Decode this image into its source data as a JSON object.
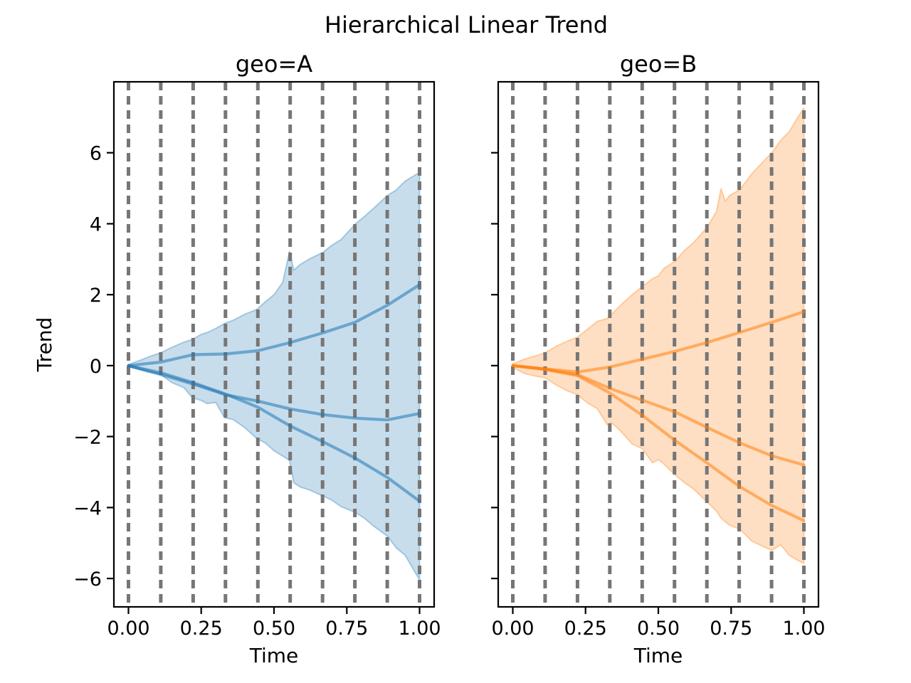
{
  "suptitle": "Hierarchical Linear Trend",
  "colors": {
    "blue": "#1f77b4",
    "orange": "#ff7f0e",
    "grid": "#767676",
    "spine": "#000000"
  },
  "chart_data": [
    {
      "type": "area",
      "title": "geo=A",
      "xlabel": "Time",
      "ylabel": "Trend",
      "color": "#1f77b4",
      "xlim": [
        -0.05,
        1.05
      ],
      "ylim": [
        -6.8,
        8.0
      ],
      "grid": "vertical-dashed-changepoints",
      "xticks": [
        0.0,
        0.25,
        0.5,
        0.75,
        1.0
      ],
      "xtick_labels": [
        "0.00",
        "0.25",
        "0.50",
        "0.75",
        "1.00"
      ],
      "yticks": [
        -6,
        -4,
        -2,
        0,
        2,
        4,
        6
      ],
      "ytick_labels": [
        "−6",
        "−4",
        "−2",
        "0",
        "2",
        "4",
        "6"
      ],
      "show_ytick_labels": true,
      "changepoints": [
        0,
        0.1111,
        0.2222,
        0.3333,
        0.4444,
        0.5556,
        0.6667,
        0.7778,
        0.8889,
        1.0
      ],
      "series": [
        {
          "name": "posterior-mean-line-1",
          "x": [
            0,
            0.1111,
            0.2222,
            0.3333,
            0.4444,
            0.5556,
            0.6667,
            0.7778,
            0.8889,
            1.0
          ],
          "y": [
            0,
            0.1,
            0.31,
            0.33,
            0.42,
            0.65,
            0.92,
            1.22,
            1.7,
            2.28
          ]
        },
        {
          "name": "posterior-mean-line-2",
          "x": [
            0,
            0.1111,
            0.2222,
            0.3333,
            0.4444,
            0.5556,
            0.6667,
            0.7778,
            0.8889,
            1.0
          ],
          "y": [
            0,
            -0.25,
            -0.52,
            -0.82,
            -1.0,
            -1.22,
            -1.38,
            -1.48,
            -1.53,
            -1.35
          ]
        },
        {
          "name": "posterior-mean-line-3",
          "x": [
            0,
            0.1111,
            0.2222,
            0.3333,
            0.4444,
            0.5556,
            0.6667,
            0.7778,
            0.8889,
            1.0
          ],
          "y": [
            0,
            -0.2,
            -0.48,
            -0.8,
            -1.17,
            -1.7,
            -2.14,
            -2.6,
            -3.15,
            -3.82
          ]
        }
      ],
      "band": {
        "x": [
          0.0,
          0.04,
          0.08,
          0.11,
          0.15,
          0.19,
          0.22,
          0.25,
          0.27,
          0.3,
          0.33,
          0.36,
          0.4,
          0.44,
          0.47,
          0.5,
          0.53,
          0.553,
          0.568,
          0.59,
          0.62,
          0.667,
          0.7,
          0.73,
          0.78,
          0.81,
          0.84,
          0.89,
          0.92,
          0.95,
          1.0
        ],
        "upper": [
          0.03,
          0.15,
          0.28,
          0.36,
          0.52,
          0.66,
          0.74,
          0.88,
          0.93,
          1.05,
          1.19,
          1.28,
          1.45,
          1.58,
          1.8,
          2.0,
          2.35,
          3.22,
          2.69,
          2.85,
          3.0,
          3.19,
          3.4,
          3.55,
          4.0,
          4.2,
          4.42,
          4.8,
          4.95,
          5.2,
          5.45
        ],
        "lower": [
          -0.03,
          -0.12,
          -0.2,
          -0.25,
          -0.48,
          -0.62,
          -0.91,
          -0.98,
          -1.07,
          -1.04,
          -1.47,
          -1.52,
          -1.75,
          -2.05,
          -2.18,
          -2.4,
          -2.55,
          -2.67,
          -3.3,
          -3.42,
          -3.5,
          -3.67,
          -3.8,
          -3.97,
          -4.14,
          -4.3,
          -4.51,
          -4.81,
          -5.14,
          -5.34,
          -6.04
        ]
      }
    },
    {
      "type": "area",
      "title": "geo=B",
      "xlabel": "Time",
      "ylabel": "",
      "color": "#ff7f0e",
      "xlim": [
        -0.05,
        1.05
      ],
      "ylim": [
        -6.8,
        8.0
      ],
      "grid": "vertical-dashed-changepoints",
      "xticks": [
        0.0,
        0.25,
        0.5,
        0.75,
        1.0
      ],
      "xtick_labels": [
        "0.00",
        "0.25",
        "0.50",
        "0.75",
        "1.00"
      ],
      "yticks": [
        -6,
        -4,
        -2,
        0,
        2,
        4,
        6
      ],
      "ytick_labels": [
        "−6",
        "−4",
        "−2",
        "0",
        "2",
        "4",
        "6"
      ],
      "show_ytick_labels": false,
      "changepoints": [
        0,
        0.1111,
        0.2222,
        0.3333,
        0.4444,
        0.5556,
        0.6667,
        0.7778,
        0.8889,
        1.0
      ],
      "series": [
        {
          "name": "posterior-mean-line-1",
          "x": [
            0,
            0.1111,
            0.2222,
            0.3333,
            0.4444,
            0.5556,
            0.6667,
            0.7778,
            0.8889,
            1.0
          ],
          "y": [
            0,
            -0.09,
            -0.18,
            -0.04,
            0.18,
            0.4,
            0.65,
            0.93,
            1.22,
            1.52
          ]
        },
        {
          "name": "posterior-mean-line-2",
          "x": [
            0,
            0.1111,
            0.2222,
            0.3333,
            0.4444,
            0.5556,
            0.6667,
            0.7778,
            0.8889,
            1.0
          ],
          "y": [
            0,
            -0.1,
            -0.25,
            -0.64,
            -0.97,
            -1.3,
            -1.74,
            -2.17,
            -2.54,
            -2.8
          ]
        },
        {
          "name": "posterior-mean-line-3",
          "x": [
            0,
            0.1111,
            0.2222,
            0.3333,
            0.4444,
            0.5556,
            0.6667,
            0.7778,
            0.8889,
            1.0
          ],
          "y": [
            0,
            -0.11,
            -0.28,
            -0.77,
            -1.4,
            -2.1,
            -2.74,
            -3.4,
            -3.94,
            -4.37
          ]
        }
      ],
      "band": {
        "x": [
          0.0,
          0.04,
          0.08,
          0.11,
          0.15,
          0.19,
          0.22,
          0.26,
          0.29,
          0.325,
          0.34,
          0.37,
          0.41,
          0.445,
          0.48,
          0.5,
          0.52,
          0.556,
          0.59,
          0.62,
          0.667,
          0.7,
          0.715,
          0.73,
          0.745,
          0.78,
          0.82,
          0.86,
          0.89,
          0.92,
          0.95,
          0.975,
          1.0
        ],
        "upper": [
          0.05,
          0.18,
          0.28,
          0.36,
          0.55,
          0.7,
          0.79,
          1.05,
          1.25,
          1.33,
          1.45,
          1.7,
          2.0,
          2.23,
          2.45,
          2.53,
          2.75,
          2.93,
          3.25,
          3.46,
          3.89,
          4.35,
          4.99,
          4.63,
          4.8,
          4.96,
          5.4,
          5.75,
          6.0,
          6.35,
          6.6,
          6.95,
          7.26
        ],
        "lower": [
          -0.05,
          -0.22,
          -0.3,
          -0.34,
          -0.55,
          -0.72,
          -0.81,
          -1.07,
          -1.21,
          -1.67,
          -1.61,
          -1.84,
          -2.21,
          -2.34,
          -2.74,
          -2.65,
          -2.78,
          -3.07,
          -3.3,
          -3.47,
          -3.84,
          -4.1,
          -4.3,
          -4.4,
          -4.5,
          -4.61,
          -4.94,
          -5.1,
          -5.21,
          -5.05,
          -5.35,
          -5.47,
          -5.57
        ]
      }
    }
  ]
}
